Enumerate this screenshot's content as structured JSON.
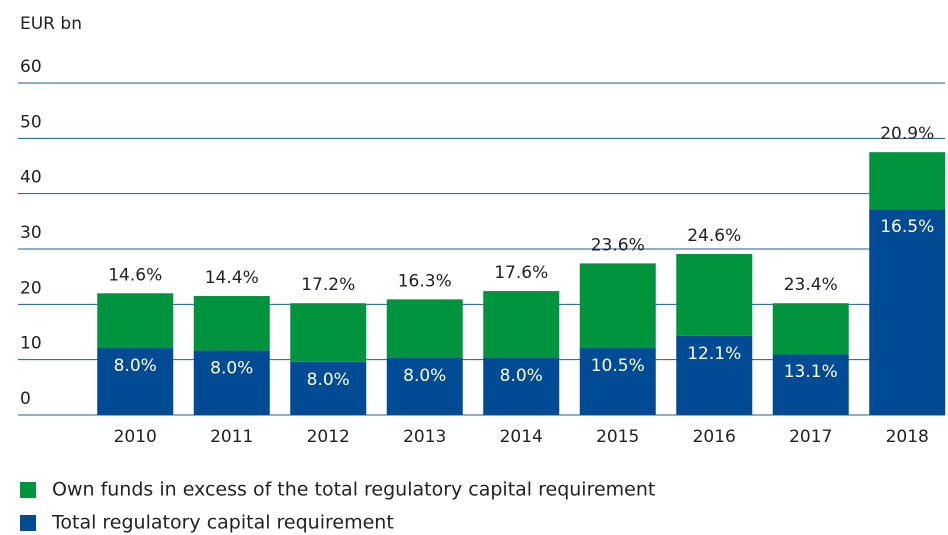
{
  "chart_data": {
    "type": "stacked-bar",
    "ylabel": "EUR bn",
    "categories": [
      "2010",
      "2011",
      "2012",
      "2013",
      "2014",
      "2015",
      "2016",
      "2017",
      "2018"
    ],
    "series": [
      {
        "name": "Total regulatory capital requirement",
        "color": "#004b93",
        "values": [
          12.1,
          11.7,
          9.6,
          10.3,
          10.3,
          12.1,
          14.3,
          11.0,
          37.2
        ]
      },
      {
        "name": "Own funds in excess of the total regulatory capital requirement",
        "color": "#00943f",
        "values": [
          9.9,
          9.8,
          10.6,
          10.6,
          12.1,
          15.3,
          14.8,
          9.2,
          10.3
        ]
      }
    ],
    "annotations": {
      "requirement_ratio": [
        "8.0%",
        "8.0%",
        "8.0%",
        "8.0%",
        "8.0%",
        "10.5%",
        "12.1%",
        "13.1%",
        "16.5%"
      ],
      "total_ratio": [
        "14.6%",
        "14.4%",
        "17.2%",
        "16.3%",
        "17.6%",
        "23.6%",
        "24.6%",
        "23.4%",
        "20.9%"
      ]
    },
    "legend_order": [
      1,
      0
    ],
    "ylim": [
      0,
      60
    ],
    "yticks": [
      0,
      10,
      20,
      30,
      40,
      50,
      60
    ],
    "grid": true
  }
}
